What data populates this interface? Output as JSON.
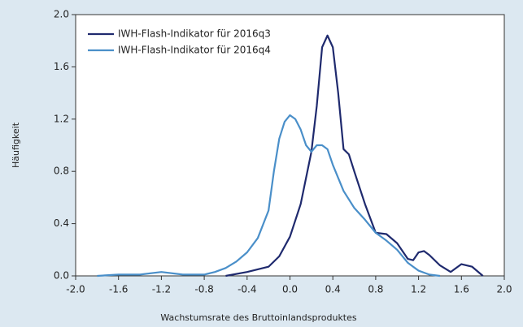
{
  "chart_data": {
    "type": "line",
    "xlabel": "Wachstumsrate des Bruttoinlandsproduktes",
    "ylabel": "Häufigkeit",
    "xlim": [
      -2,
      2
    ],
    "ylim": [
      0,
      2
    ],
    "xticks": [
      {
        "value": -2,
        "label": "-2.0"
      },
      -1.6,
      -1.2,
      -0.8,
      -0.4,
      {
        "value": 0,
        "label": "0.0"
      },
      0.4,
      0.8,
      1.2,
      1.6,
      {
        "value": 2,
        "label": "2.0"
      }
    ],
    "yticks": [
      {
        "value": 0,
        "label": "0.0"
      },
      0.4,
      0.8,
      1.2,
      1.6,
      {
        "value": 2,
        "label": "2.0"
      }
    ],
    "legend": "upper-left",
    "series": [
      {
        "name": "IWH-Flash-Indikator für 2016q3",
        "color": "#1f2a6e",
        "x": [
          -0.6,
          -0.4,
          -0.2,
          -0.1,
          0,
          0.1,
          0.2,
          0.25,
          0.3,
          0.35,
          0.4,
          0.45,
          0.5,
          0.55,
          0.6,
          0.7,
          0.8,
          0.9,
          1.0,
          1.1,
          1.15,
          1.2,
          1.25,
          1.3,
          1.4,
          1.5,
          1.6,
          1.7,
          1.8
        ],
        "values": [
          0,
          0.03,
          0.07,
          0.15,
          0.3,
          0.55,
          0.95,
          1.3,
          1.75,
          1.84,
          1.75,
          1.4,
          0.97,
          0.93,
          0.8,
          0.55,
          0.33,
          0.32,
          0.25,
          0.13,
          0.12,
          0.18,
          0.19,
          0.16,
          0.08,
          0.03,
          0.09,
          0.07,
          0
        ]
      },
      {
        "name": "IWH-Flash-Indikator für 2016q4",
        "color": "#4a8fc9",
        "x": [
          -1.8,
          -1.6,
          -1.4,
          -1.2,
          -1.0,
          -0.8,
          -0.7,
          -0.6,
          -0.5,
          -0.4,
          -0.3,
          -0.2,
          -0.15,
          -0.1,
          -0.05,
          0,
          0.05,
          0.1,
          0.15,
          0.2,
          0.25,
          0.3,
          0.35,
          0.4,
          0.5,
          0.6,
          0.7,
          0.8,
          0.9,
          1.0,
          1.1,
          1.2,
          1.3,
          1.4
        ],
        "values": [
          0,
          0.01,
          0.01,
          0.03,
          0.01,
          0.01,
          0.03,
          0.06,
          0.11,
          0.18,
          0.29,
          0.5,
          0.8,
          1.05,
          1.18,
          1.23,
          1.2,
          1.12,
          1.0,
          0.95,
          1.0,
          1.0,
          0.97,
          0.85,
          0.65,
          0.52,
          0.43,
          0.33,
          0.27,
          0.2,
          0.1,
          0.04,
          0.01,
          0
        ]
      }
    ]
  }
}
